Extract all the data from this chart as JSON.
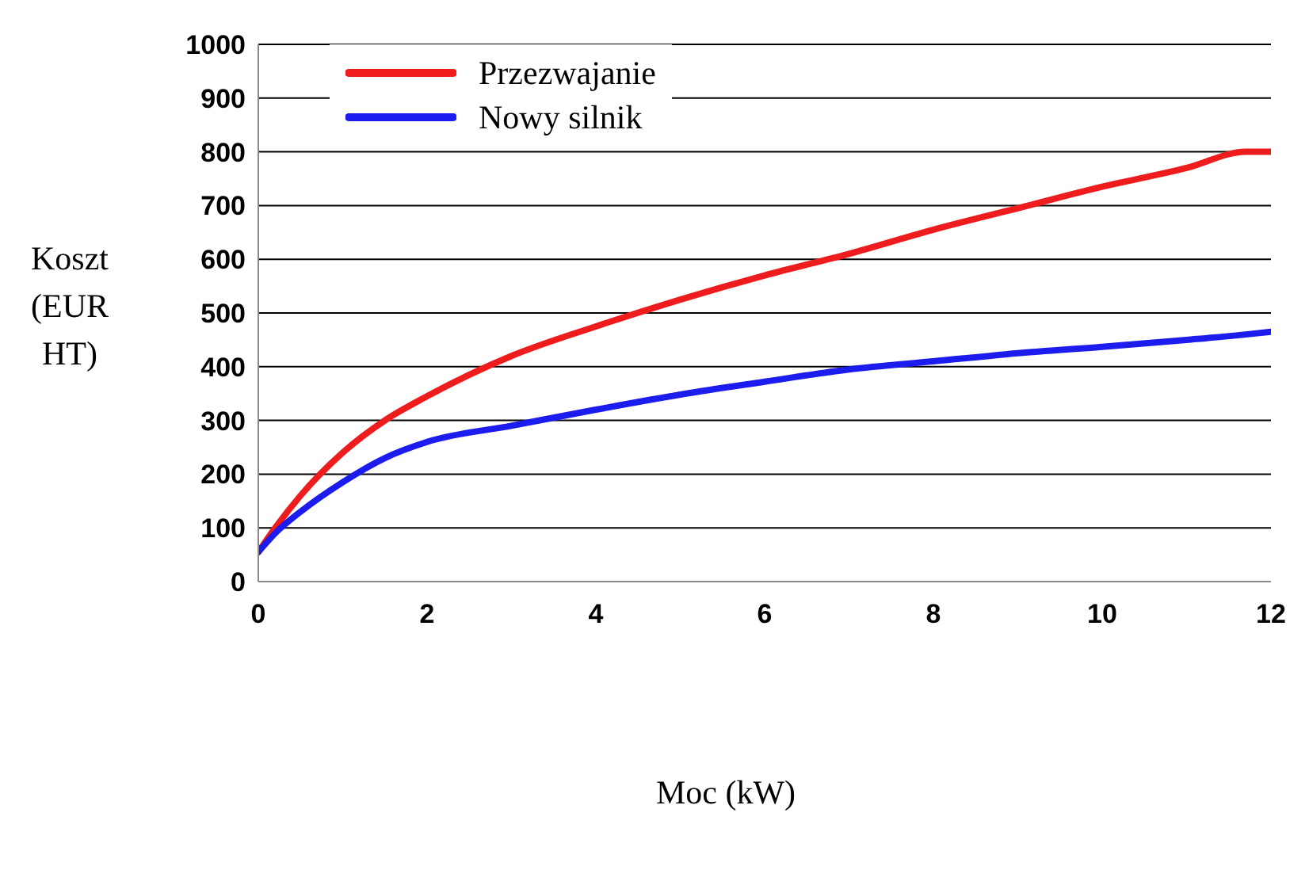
{
  "chart_data": {
    "type": "line",
    "xlabel": "Moc (kW)",
    "ylabel": "Koszt (EUR HT)",
    "x": [
      0,
      0.2,
      0.5,
      1,
      1.5,
      2,
      3,
      4,
      5,
      6,
      7,
      8,
      9,
      10,
      11,
      11.7,
      12
    ],
    "series": [
      {
        "name": "Przezwajanie",
        "color": "#ee1c1c",
        "values": [
          55,
          100,
          160,
          240,
          300,
          345,
          420,
          475,
          525,
          570,
          610,
          655,
          695,
          735,
          770,
          800,
          800
        ]
      },
      {
        "name": "Nowy silnik",
        "color": "#1c1cee",
        "values": [
          55,
          90,
          130,
          185,
          230,
          260,
          290,
          320,
          348,
          372,
          395,
          410,
          425,
          437,
          450,
          460,
          465
        ]
      }
    ],
    "xlim": [
      0,
      12
    ],
    "xticks": [
      0,
      2,
      4,
      6,
      8,
      10,
      12
    ],
    "ylim": [
      0,
      1000
    ],
    "yticks": [
      0,
      100,
      200,
      300,
      400,
      500,
      600,
      700,
      800,
      900,
      1000
    ],
    "grid": "y",
    "legend": "top left",
    "marker": "none",
    "line_style": "solid"
  }
}
